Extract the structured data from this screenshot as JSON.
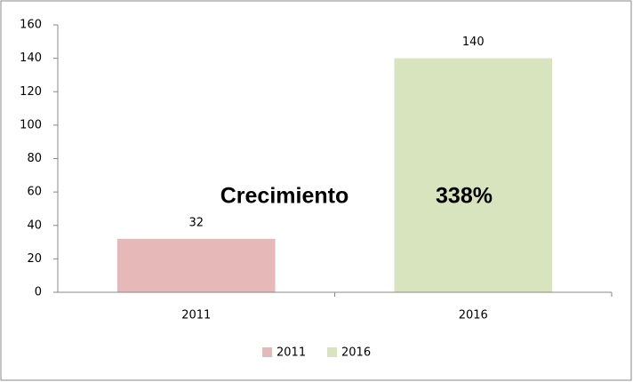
{
  "chart_data": {
    "type": "bar",
    "categories": [
      "2011",
      "2016"
    ],
    "values": [
      32,
      140
    ],
    "colors": [
      "#e6b9b8",
      "#d7e4bd"
    ],
    "ylim": [
      0,
      160
    ],
    "yticks": [
      0,
      20,
      40,
      60,
      80,
      100,
      120,
      140,
      160
    ],
    "grid": false,
    "legend": "bottom",
    "annotations": [
      "Crecimiento",
      "338%"
    ]
  }
}
